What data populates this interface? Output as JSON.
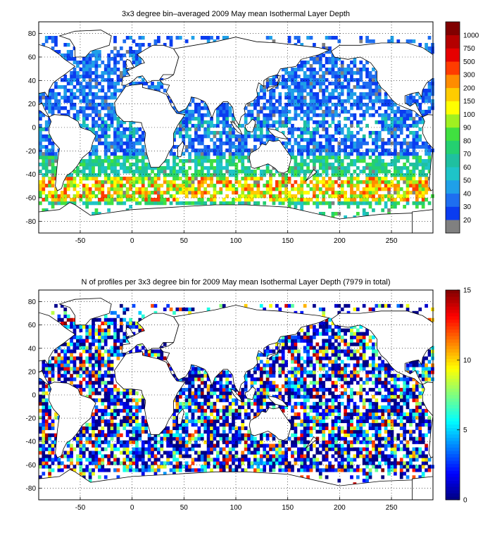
{
  "chart_data": [
    {
      "type": "heatmap",
      "title": "3x3 degree bin–averaged 2009 May mean Isothermal Layer Depth",
      "xlabel": "",
      "ylabel": "",
      "xlim": [
        -90,
        290
      ],
      "ylim": [
        -90,
        90
      ],
      "x_ticks": [
        "-50",
        "0",
        "50",
        "100",
        "150",
        "200",
        "250"
      ],
      "y_ticks": [
        "80",
        "60",
        "40",
        "20",
        "0",
        "-20",
        "-40",
        "-60",
        "-80"
      ],
      "grid": true,
      "colorbar": {
        "type": "discrete",
        "labels": [
          "20",
          "30",
          "40",
          "50",
          "60",
          "70",
          "80",
          "90",
          "100",
          "150",
          "200",
          "300",
          "500",
          "750",
          "1000"
        ],
        "colors": [
          "#808080",
          "#0a3cf0",
          "#1e6ef0",
          "#1fa0e8",
          "#1ec4c8",
          "#1fc0a0",
          "#24d070",
          "#40e040",
          "#a0f020",
          "#ffff00",
          "#ffcc00",
          "#ff8c00",
          "#ff3c00",
          "#e60000",
          "#b40000",
          "#800000"
        ]
      },
      "bin_size_deg": 3
    },
    {
      "type": "heatmap",
      "title": "N of profiles per 3x3 degree bin for 2009 May mean Isothermal Layer Depth  (7979 in total)",
      "xlabel": "",
      "ylabel": "",
      "xlim": [
        -90,
        290
      ],
      "ylim": [
        -90,
        90
      ],
      "x_ticks": [
        "-50",
        "0",
        "50",
        "100",
        "150",
        "200",
        "250"
      ],
      "y_ticks": [
        "80",
        "60",
        "40",
        "20",
        "0",
        "-20",
        "-40",
        "-60",
        "-80"
      ],
      "grid": true,
      "colorbar": {
        "type": "continuous",
        "range": [
          0,
          15
        ],
        "labels": [
          "0",
          "5",
          "10",
          "15"
        ],
        "colormap": "jet"
      },
      "bin_size_deg": 3
    }
  ]
}
